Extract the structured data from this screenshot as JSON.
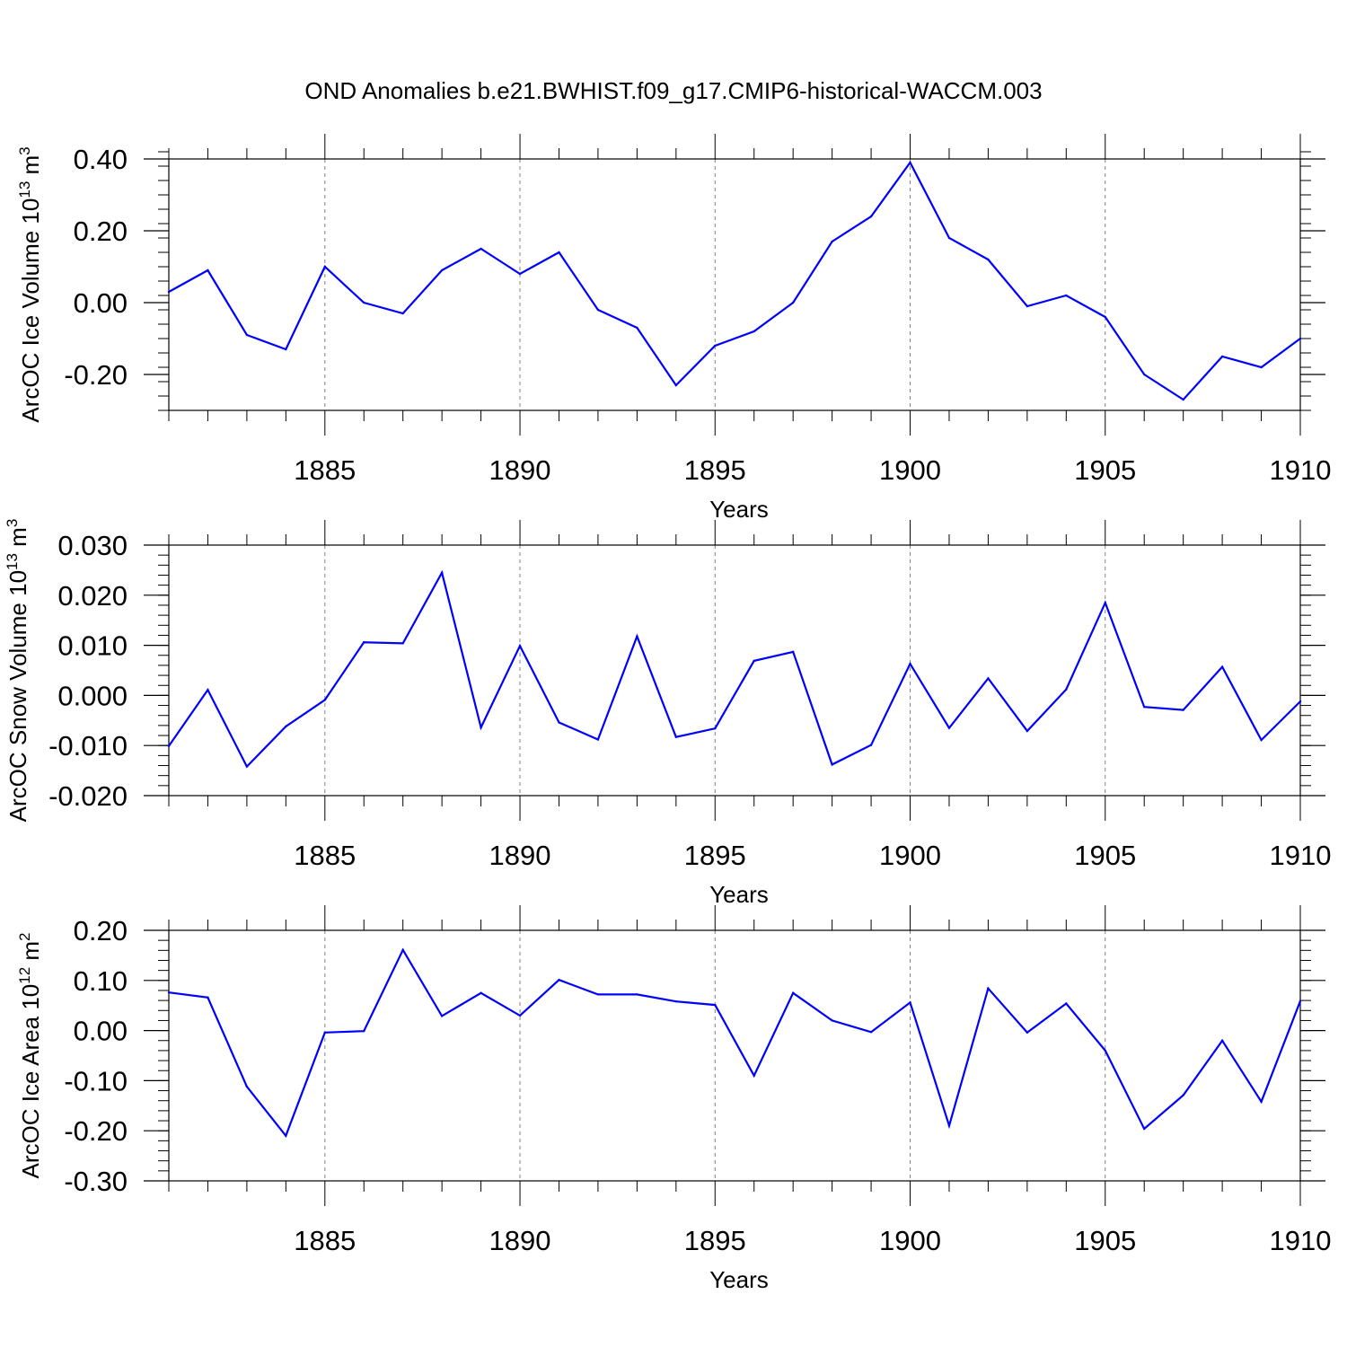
{
  "title": "OND Anomalies b.e21.BWHIST.f09_g17.CMIP6-historical-WACCM.003",
  "colors": {
    "line": "#0000ff",
    "axis": "#000000",
    "grid": "#808080"
  },
  "chart_data": [
    {
      "type": "line",
      "ylabel": "ArcOC Ice Volume 10",
      "ylabel_sup": "13",
      "ylabel_unit": "m",
      "ylabel_unit_sup": "3",
      "xlabel": "Years",
      "xlim": [
        1881,
        1910
      ],
      "ylim": [
        -0.3,
        0.4
      ],
      "yticks": [
        -0.2,
        0.0,
        0.2,
        0.4
      ],
      "ytick_labels": [
        "-0.20",
        "0.00",
        "0.20",
        "0.40"
      ],
      "xticks": [
        1885,
        1890,
        1895,
        1900,
        1905,
        1910
      ],
      "xtick_labels": [
        "1885",
        "1890",
        "1895",
        "1900",
        "1905",
        "1910"
      ],
      "grid": "vertical dashed at major x ticks",
      "x": [
        1881,
        1882,
        1883,
        1884,
        1885,
        1886,
        1887,
        1888,
        1889,
        1890,
        1891,
        1892,
        1893,
        1894,
        1895,
        1896,
        1897,
        1898,
        1899,
        1900,
        1901,
        1902,
        1903,
        1904,
        1905,
        1906,
        1907,
        1908,
        1909,
        1910
      ],
      "values": [
        0.03,
        0.09,
        -0.09,
        -0.13,
        0.1,
        0.0,
        -0.03,
        0.09,
        0.15,
        0.08,
        0.14,
        -0.02,
        -0.07,
        -0.23,
        -0.12,
        -0.08,
        0.0,
        0.17,
        0.24,
        0.39,
        0.18,
        0.12,
        -0.01,
        0.02,
        -0.04,
        -0.2,
        -0.27,
        -0.15,
        -0.18,
        -0.1
      ]
    },
    {
      "type": "line",
      "ylabel": "ArcOC Snow Volume 10",
      "ylabel_sup": "13",
      "ylabel_unit": "m",
      "ylabel_unit_sup": "3",
      "xlabel": "Years",
      "xlim": [
        1881,
        1910
      ],
      "ylim": [
        -0.02,
        0.03
      ],
      "yticks": [
        -0.02,
        -0.01,
        0.0,
        0.01,
        0.02,
        0.03
      ],
      "ytick_labels": [
        "-0.020",
        "-0.010",
        "0.000",
        "0.010",
        "0.020",
        "0.030"
      ],
      "xticks": [
        1885,
        1890,
        1895,
        1900,
        1905,
        1910
      ],
      "xtick_labels": [
        "1885",
        "1890",
        "1895",
        "1900",
        "1905",
        "1910"
      ],
      "grid": "vertical dashed at major x ticks",
      "x": [
        1881,
        1882,
        1883,
        1884,
        1885,
        1886,
        1887,
        1888,
        1889,
        1890,
        1891,
        1892,
        1893,
        1894,
        1895,
        1896,
        1897,
        1898,
        1899,
        1900,
        1901,
        1902,
        1903,
        1904,
        1905,
        1906,
        1907,
        1908,
        1909,
        1910
      ],
      "values": [
        -0.0101,
        0.0011,
        -0.0142,
        -0.0062,
        -0.0009,
        0.0106,
        0.0104,
        0.0245,
        -0.0064,
        0.0099,
        -0.0054,
        -0.0088,
        0.0118,
        -0.0083,
        -0.0066,
        0.0069,
        0.0087,
        -0.0138,
        -0.0099,
        0.0063,
        -0.0065,
        0.0034,
        -0.0071,
        0.0012,
        0.0185,
        -0.0023,
        -0.0029,
        0.0057,
        -0.0089,
        -0.0012
      ]
    },
    {
      "type": "line",
      "ylabel": "ArcOC Ice Area 10",
      "ylabel_sup": "12",
      "ylabel_unit": "m",
      "ylabel_unit_sup": "2",
      "xlabel": "Years",
      "xlim": [
        1881,
        1910
      ],
      "ylim": [
        -0.3,
        0.2
      ],
      "yticks": [
        -0.3,
        -0.2,
        -0.1,
        0.0,
        0.1,
        0.2
      ],
      "ytick_labels": [
        "-0.30",
        "-0.20",
        "-0.10",
        "0.00",
        "0.10",
        "0.20"
      ],
      "xticks": [
        1885,
        1890,
        1895,
        1900,
        1905,
        1910
      ],
      "xtick_labels": [
        "1885",
        "1890",
        "1895",
        "1900",
        "1905",
        "1910"
      ],
      "grid": "vertical dashed at major x ticks",
      "x": [
        1881,
        1882,
        1883,
        1884,
        1885,
        1886,
        1887,
        1888,
        1889,
        1890,
        1891,
        1892,
        1893,
        1894,
        1895,
        1896,
        1897,
        1898,
        1899,
        1900,
        1901,
        1902,
        1903,
        1904,
        1905,
        1906,
        1907,
        1908,
        1909,
        1910
      ],
      "values": [
        0.076,
        0.066,
        -0.112,
        -0.21,
        -0.004,
        -0.001,
        0.161,
        0.029,
        0.075,
        0.03,
        0.101,
        0.072,
        0.072,
        0.058,
        0.051,
        -0.09,
        0.075,
        0.02,
        -0.003,
        0.056,
        -0.19,
        0.084,
        -0.004,
        0.054,
        -0.04,
        -0.196,
        -0.129,
        -0.02,
        -0.142,
        0.059
      ]
    }
  ]
}
